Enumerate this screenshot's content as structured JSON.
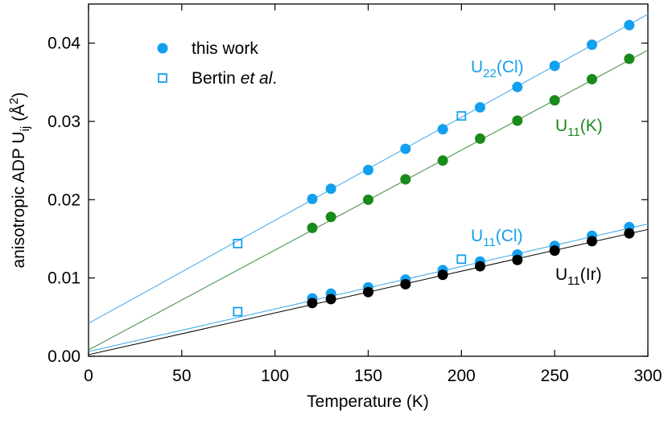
{
  "chart_data": {
    "type": "scatter",
    "xlabel": "Temperature (K)",
    "ylabel": {
      "main": "anisotropic ADP U",
      "sub": "ij",
      "mid": " (Å",
      "sup": "2",
      "end": ")"
    },
    "xlim": [
      0,
      300
    ],
    "xticks": [
      0,
      50,
      100,
      150,
      200,
      250,
      300
    ],
    "ylim": [
      0,
      0.045
    ],
    "yticks": [
      {
        "value": 0,
        "label": "0.00"
      },
      {
        "value": 0.01,
        "label": "0.01"
      },
      {
        "value": 0.02,
        "label": "0.02"
      },
      {
        "value": 0.03,
        "label": "0.03"
      },
      {
        "value": 0.04,
        "label": "0.04"
      }
    ],
    "legend": [
      {
        "label": "this work",
        "marker": "circle",
        "color": "#12a0ee"
      },
      {
        "before": "Bertin ",
        "italic": "et al",
        "after": ".",
        "marker": "square",
        "color": "#12a0ee"
      }
    ],
    "x": [
      120,
      130,
      150,
      170,
      190,
      210,
      230,
      250,
      270,
      290
    ],
    "ref_x": [
      80,
      200
    ],
    "fit_x": [
      0,
      300
    ],
    "curves": [
      {
        "label": {
          "main": "U",
          "sub": "22",
          "rest": "(Cl)"
        },
        "color": "#12a0ee",
        "line_color": "#3aa8e8",
        "values": [
          0.0201,
          0.0214,
          0.0238,
          0.0265,
          0.029,
          0.0318,
          0.0344,
          0.0371,
          0.0398,
          0.0423
        ],
        "ref_values": [
          0.0144,
          0.0307
        ],
        "fit_values": [
          0.0042,
          0.0437
        ]
      },
      {
        "label": {
          "main": "U",
          "sub": "11",
          "rest": "(K)"
        },
        "color": "#1a8a1a",
        "line_color": "#3a8a3a",
        "values": [
          0.0164,
          0.0178,
          0.02,
          0.0226,
          0.025,
          0.0278,
          0.0301,
          0.0327,
          0.0354,
          0.038
        ],
        "fit_values": [
          0.0008,
          0.0391
        ]
      },
      {
        "label": {
          "main": "U",
          "sub": "11",
          "rest": "(Cl)"
        },
        "color": "#12a0ee",
        "line_color": "#3aa8e8",
        "values": [
          0.0074,
          0.008,
          0.0088,
          0.0098,
          0.011,
          0.0121,
          0.013,
          0.0141,
          0.0154,
          0.0165
        ],
        "ref_values": [
          0.0057,
          0.0124
        ],
        "fit_values": [
          0.0006,
          0.0169
        ]
      },
      {
        "label": {
          "main": "U",
          "sub": "11",
          "rest": "(Ir)"
        },
        "color": "#000000",
        "line_color": "#000000",
        "values": [
          0.0068,
          0.0073,
          0.0082,
          0.0092,
          0.0104,
          0.0115,
          0.0123,
          0.0135,
          0.0147,
          0.0157
        ],
        "fit_values": [
          0.0002,
          0.0162
        ]
      }
    ]
  }
}
